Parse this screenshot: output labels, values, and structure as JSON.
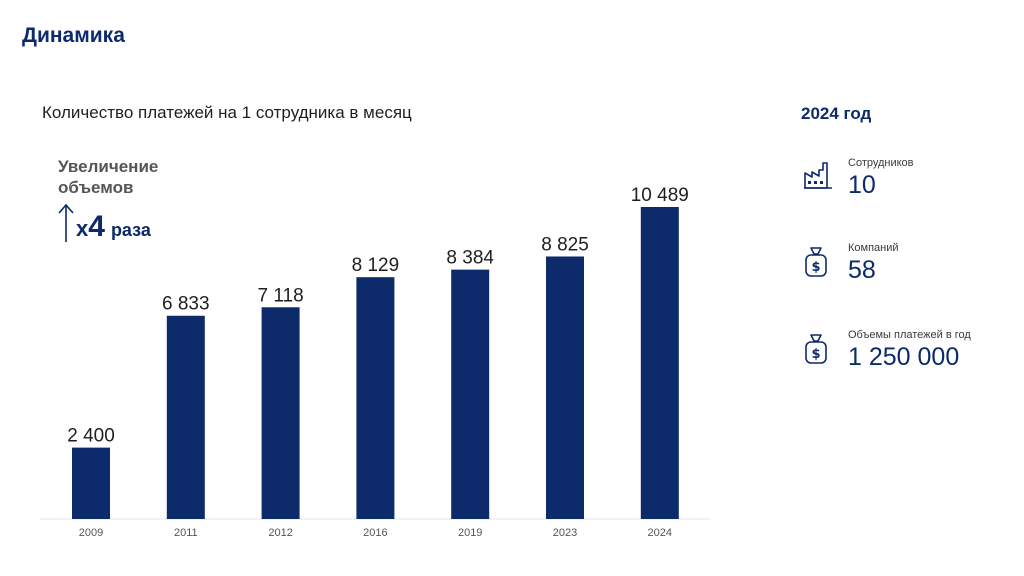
{
  "page": {
    "title": "Динамика"
  },
  "chart_data": {
    "type": "bar",
    "title": "Количество платежей на 1 сотрудника в месяц",
    "categories": [
      "2009",
      "2011",
      "2012",
      "2016",
      "2019",
      "2023",
      "2024"
    ],
    "values": [
      2400,
      6833,
      7118,
      8129,
      8384,
      8825,
      10489
    ],
    "value_labels": [
      "2 400",
      "6 833",
      "7 118",
      "8 129",
      "8 384",
      "8 825",
      "10 489"
    ],
    "ylim": [
      0,
      10489
    ],
    "grid": false,
    "bar_color": "#0d2a6b"
  },
  "growth": {
    "label": "Увеличение объемов",
    "prefix": "x",
    "factor": "4",
    "unit": "раза"
  },
  "side": {
    "title": "2024 год",
    "stats": [
      {
        "icon": "factory-icon",
        "label": "Сотрудников",
        "value": "10"
      },
      {
        "icon": "money-bag-icon",
        "label": "Компаний",
        "value": "58"
      },
      {
        "icon": "money-bag-icon",
        "label": "Объемы платежей в год",
        "value": "1 250 000"
      }
    ]
  },
  "colors": {
    "accent": "#0d2a6b",
    "text": "#1f1f1f",
    "muted": "#555555"
  }
}
